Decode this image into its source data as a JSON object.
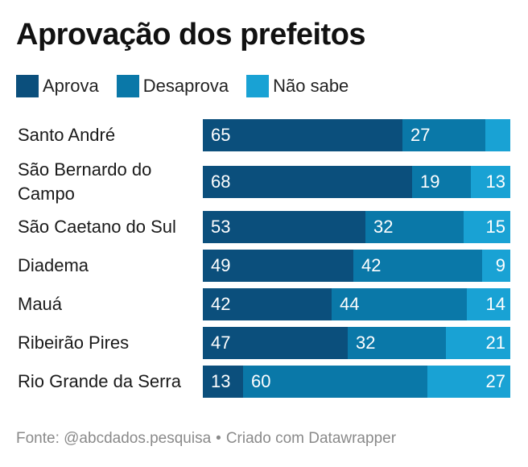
{
  "title": "Aprovação dos prefeitos",
  "footer": {
    "source": "Fonte: @abcdados.pesquisa",
    "separator": "•",
    "credit": "Criado com Datawrapper"
  },
  "chart_data": {
    "type": "bar",
    "orientation": "horizontal",
    "stacked": true,
    "title": "Aprovação dos prefeitos",
    "legend": "top-left",
    "categories": [
      "Santo André",
      "São Bernardo do Campo",
      "São Caetano do Sul",
      "Diadema",
      "Mauá",
      "Ribeirão Pires",
      "Rio Grande da Serra"
    ],
    "series": [
      {
        "name": "Aprova",
        "color": "#0b4f7c",
        "values": [
          65,
          68,
          53,
          49,
          42,
          47,
          13
        ]
      },
      {
        "name": "Desaprova",
        "color": "#0a78a8",
        "values": [
          27,
          19,
          32,
          42,
          44,
          32,
          60
        ]
      },
      {
        "name": "Não sabe",
        "color": "#19a2d4",
        "values": [
          8,
          13,
          15,
          9,
          14,
          21,
          27
        ]
      }
    ],
    "data_labels": [
      [
        "65",
        "27",
        ""
      ],
      [
        "68",
        "19",
        "13"
      ],
      [
        "53",
        "32",
        "15"
      ],
      [
        "49",
        "42",
        "9"
      ],
      [
        "42",
        "44",
        "14"
      ],
      [
        "47",
        "32",
        "21"
      ],
      [
        "13",
        "60",
        "27"
      ]
    ],
    "xlim": [
      0,
      100
    ]
  }
}
